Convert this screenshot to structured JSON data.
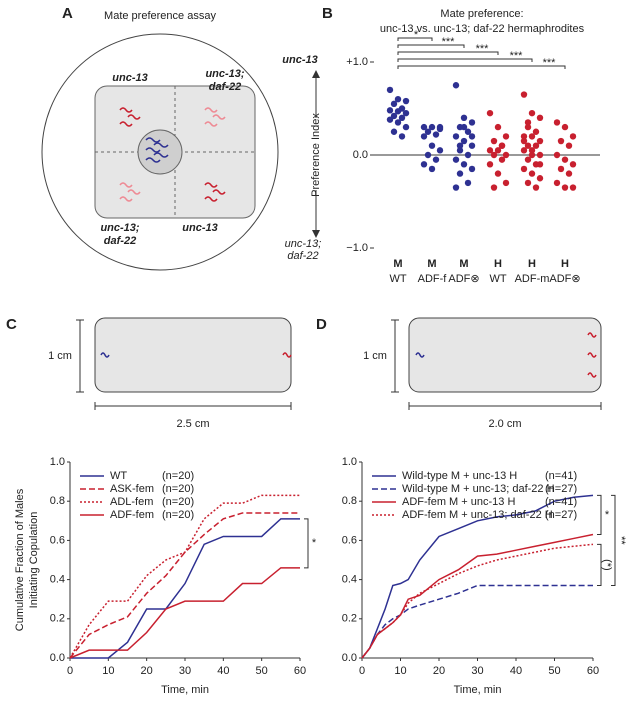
{
  "panel_labels": [
    "A",
    "B",
    "C",
    "D"
  ],
  "assay": {
    "title": "Mate preference assay",
    "labels": [
      [
        "unc-13"
      ],
      [
        "unc-13;",
        "daf-22"
      ],
      [
        "unc-13;",
        "daf-22"
      ],
      [
        "unc-13"
      ]
    ]
  },
  "arena_c": {
    "height": "1 cm",
    "width": "2.5 cm"
  },
  "arena_d": {
    "height": "1 cm",
    "width": "2.0 cm"
  },
  "chart_data": [
    {
      "type": "dot",
      "title": "Mate preference:",
      "subtitle": "unc-13 vs. unc-13; daf-22 hermaphrodites",
      "ylabel": "Preference Index",
      "axis_top_label": "unc-13",
      "axis_bottom_label": [
        "unc-13;",
        "daf-22"
      ],
      "categories": [
        "M",
        "M",
        "M",
        "H",
        "H",
        "H"
      ],
      "sublabels": [
        "WT",
        "ADF-f",
        "ADF⊗",
        "WT",
        "ADF-m",
        "ADF⊗"
      ],
      "colors": [
        "#2e3192",
        "#2e3192",
        "#2e3192",
        "#c8202f",
        "#c8202f",
        "#c8202f"
      ],
      "points": [
        [
          0.7,
          0.6,
          0.58,
          0.55,
          0.5,
          0.48,
          0.47,
          0.45,
          0.42,
          0.4,
          0.38,
          0.35,
          0.3,
          0.25,
          0.2
        ],
        [
          0.3,
          0.3,
          0.28,
          0.25,
          0.22,
          0.2,
          0.1,
          0.05,
          0,
          -0.05,
          -0.1,
          -0.15,
          0.3
        ],
        [
          0.75,
          0.4,
          0.35,
          0.3,
          0.25,
          0.2,
          0.15,
          0.1,
          0.05,
          0,
          -0.05,
          -0.1,
          -0.15,
          -0.2,
          -0.3,
          -0.35,
          0.3,
          0.2,
          0.1
        ],
        [
          0.45,
          0.3,
          0.2,
          0.15,
          0.1,
          0.05,
          0.05,
          0,
          0,
          -0.05,
          -0.1,
          -0.2,
          -0.3,
          -0.35,
          0.1
        ],
        [
          0.65,
          0.45,
          0.4,
          0.3,
          0.25,
          0.2,
          0.2,
          0.15,
          0.1,
          0.1,
          0.05,
          0,
          0,
          -0.05,
          -0.1,
          -0.15,
          -0.2,
          -0.25,
          -0.3,
          -0.35,
          0.15,
          0.05,
          -0.1,
          0.35
        ],
        [
          0.35,
          0.3,
          0.2,
          0.15,
          0.1,
          0,
          -0.05,
          -0.1,
          -0.15,
          -0.2,
          -0.3,
          -0.35,
          -0.35
        ]
      ],
      "ylim": [
        -1,
        1
      ],
      "yticks": [
        {
          "value": 1,
          "label": "+1.0"
        },
        {
          "value": 0,
          "label": "0.0"
        },
        {
          "value": -1,
          "label": "−1.0"
        }
      ],
      "brackets": [
        {
          "from": 0,
          "to": 1,
          "label": "*"
        },
        {
          "from": 0,
          "to": 2,
          "label": "***"
        },
        {
          "from": 0,
          "to": 3,
          "label": "***"
        },
        {
          "from": 0,
          "to": 4,
          "label": "***"
        },
        {
          "from": 0,
          "to": 5,
          "label": "***"
        }
      ]
    },
    {
      "type": "line",
      "xlabel": "Time, min",
      "ylabel": [
        "Cumulative Fraction of Males",
        "Initiating Copulation"
      ],
      "x": [
        0,
        5,
        10,
        15,
        20,
        25,
        30,
        35,
        40,
        45,
        50,
        55,
        60
      ],
      "series": [
        {
          "name": "WT",
          "n": "(n=20)",
          "color": "#2e3192",
          "dash": "solid",
          "values": [
            0,
            0,
            0,
            0.08,
            0.25,
            0.25,
            0.38,
            0.58,
            0.62,
            0.62,
            0.62,
            0.71,
            0.71
          ]
        },
        {
          "name": "ASK-fem",
          "n": "(n=20)",
          "color": "#c8202f",
          "dash": "dashed",
          "values": [
            0,
            0.12,
            0.17,
            0.21,
            0.33,
            0.42,
            0.54,
            0.63,
            0.71,
            0.74,
            0.74,
            0.74,
            0.74
          ]
        },
        {
          "name": "ADL-fem",
          "n": "(n=20)",
          "color": "#c8202f",
          "dash": "dotted",
          "values": [
            0,
            0.17,
            0.29,
            0.29,
            0.42,
            0.5,
            0.54,
            0.71,
            0.79,
            0.79,
            0.83,
            0.83,
            0.83
          ]
        },
        {
          "name": "ADF-fem",
          "n": "(n=20)",
          "color": "#c8202f",
          "dash": "solid",
          "values": [
            0,
            0.04,
            0.04,
            0.04,
            0.13,
            0.25,
            0.29,
            0.29,
            0.29,
            0.38,
            0.38,
            0.46,
            0.46
          ]
        }
      ],
      "xlim": [
        0,
        60
      ],
      "xticks": [
        0,
        10,
        20,
        30,
        40,
        50,
        60
      ],
      "ylim": [
        0,
        1
      ],
      "yticks": [
        {
          "value": 0,
          "label": "0.0"
        },
        0.2,
        0.4,
        0.6,
        0.8,
        {
          "value": 1,
          "label": "1.0"
        }
      ],
      "brackets": [
        {
          "series": [
            0,
            3
          ],
          "label": "*"
        }
      ]
    },
    {
      "type": "line",
      "xlabel": "Time, min",
      "ylabel": [],
      "x": [
        0,
        2,
        4,
        6,
        8,
        10,
        12,
        15,
        20,
        25,
        30,
        35,
        40,
        45,
        50,
        55,
        60
      ],
      "series": [
        {
          "name": "Wild-type M + unc-13 H",
          "n": "(n=41)",
          "color": "#2e3192",
          "dash": "solid",
          "values": [
            0,
            0.05,
            0.15,
            0.25,
            0.37,
            0.38,
            0.4,
            0.5,
            0.62,
            0.66,
            0.7,
            0.72,
            0.73,
            0.75,
            0.8,
            0.82,
            0.83
          ]
        },
        {
          "name": "Wild-type M + unc-13; daf-22 H",
          "n": "(n=27)",
          "color": "#2e3192",
          "dash": "dashed",
          "values": [
            0,
            0.05,
            0.12,
            0.17,
            0.2,
            0.22,
            0.25,
            0.27,
            0.3,
            0.33,
            0.37,
            0.37,
            0.37,
            0.37,
            0.37,
            0.37,
            0.37
          ]
        },
        {
          "name": "ADF-fem M + unc-13 H",
          "n": "(n=41)",
          "color": "#c8202f",
          "dash": "solid",
          "values": [
            0,
            0.05,
            0.12,
            0.15,
            0.18,
            0.22,
            0.3,
            0.32,
            0.4,
            0.45,
            0.52,
            0.53,
            0.55,
            0.57,
            0.59,
            0.61,
            0.63
          ]
        },
        {
          "name": "ADF-fem M + unc-13; daf-22 H",
          "n": "(n=27)",
          "color": "#c8202f",
          "dash": "dotted",
          "values": [
            0,
            0.05,
            0.12,
            0.15,
            0.18,
            0.22,
            0.28,
            0.33,
            0.38,
            0.43,
            0.47,
            0.5,
            0.52,
            0.54,
            0.56,
            0.57,
            0.58
          ]
        }
      ],
      "xlim": [
        0,
        60
      ],
      "xticks": [
        0,
        10,
        20,
        30,
        40,
        50,
        60
      ],
      "ylim": [
        0,
        1
      ],
      "yticks": [
        {
          "value": 0,
          "label": "0.0"
        },
        0.2,
        0.4,
        0.6,
        0.8,
        {
          "value": 1,
          "label": "1.0"
        }
      ],
      "brackets": [
        {
          "series": [
            0,
            2
          ],
          "label": "*"
        },
        {
          "series": [
            3,
            1
          ],
          "label": "(*)"
        },
        {
          "series": [
            0,
            1
          ],
          "label": "**"
        }
      ]
    }
  ]
}
